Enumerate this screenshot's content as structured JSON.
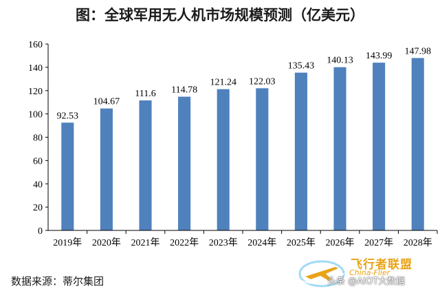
{
  "chart_data": {
    "type": "bar",
    "title": "图：全球军用无人机市场规模预测（亿美元）",
    "categories": [
      "2019年",
      "2020年",
      "2021年",
      "2022年",
      "2023年",
      "2024年",
      "2025年",
      "2026年",
      "2027年",
      "2028年"
    ],
    "values": [
      92.53,
      104.67,
      111.6,
      114.78,
      121.24,
      122.03,
      135.43,
      140.13,
      143.99,
      147.98
    ],
    "value_labels": [
      "92.53",
      "104.67",
      "111.6",
      "114.78",
      "121.24",
      "122.03",
      "135.43",
      "140.13",
      "143.99",
      "147.98"
    ],
    "ylim": [
      0,
      160
    ],
    "yticks": [
      0,
      20,
      40,
      60,
      80,
      100,
      120,
      140,
      160
    ],
    "xlabel": "",
    "ylabel": "",
    "grid": false,
    "legend": "none",
    "bar_color": "#4f81bd"
  },
  "source_note": "数据来源：蒂尔集团",
  "watermark": {
    "brand_cn": "飞行者联盟",
    "brand_en": "China-Flier",
    "platform": "头条 @AIOT大数据",
    "icon": "plane-logo-icon",
    "accent_color": "#e8a317"
  }
}
